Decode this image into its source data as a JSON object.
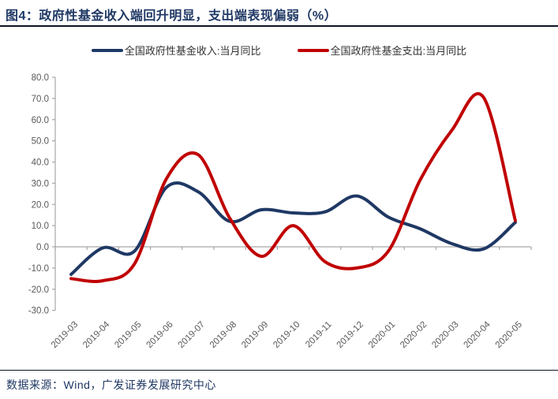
{
  "title": "图4：政府性基金收入端回升明显，支出端表现偏弱（%）",
  "footer": "数据来源：Wind，广发证券发展研究中心",
  "colors": {
    "navy": "#1f3864",
    "red": "#c00000",
    "axis_gray": "#a6a6a6",
    "tick_label_gray": "#595959",
    "rule_black": "#0b1526"
  },
  "chart_data": {
    "type": "line",
    "title": "图4：政府性基金收入端回升明显，支出端表现偏弱（%）",
    "xlabel": "",
    "ylabel": "",
    "ylim": [
      -30,
      80
    ],
    "ytick_step": 10,
    "ytick_labels": [
      "80.0",
      "70.0",
      "60.0",
      "50.0",
      "40.0",
      "30.0",
      "20.0",
      "10.0",
      "0.0",
      "-10.0",
      "-20.0",
      "-30.0"
    ],
    "grid": false,
    "legend_position": "top",
    "line_style": "smooth",
    "categories": [
      "2019-03",
      "2019-04",
      "2019-05",
      "2019-06",
      "2019-07",
      "2019-08",
      "2019-09",
      "2019-10",
      "2019-11",
      "2019-12",
      "2020-01",
      "2020-02",
      "2020-03",
      "2020-04",
      "2020-05"
    ],
    "series": [
      {
        "name": "全国政府性基金收入:当月同比",
        "color": "#1f3864",
        "values": [
          -13,
          -0.5,
          -2,
          28,
          26,
          12,
          17.5,
          16,
          16.5,
          24,
          14,
          8.5,
          1.5,
          -1,
          11.5
        ]
      },
      {
        "name": "全国政府性基金支出:当月同比",
        "color": "#c00000",
        "values": [
          -15,
          -16,
          -8,
          32,
          43.5,
          13.5,
          -4.5,
          10,
          -7,
          -10,
          -2,
          31.5,
          55,
          70.5,
          12.4
        ]
      }
    ]
  }
}
